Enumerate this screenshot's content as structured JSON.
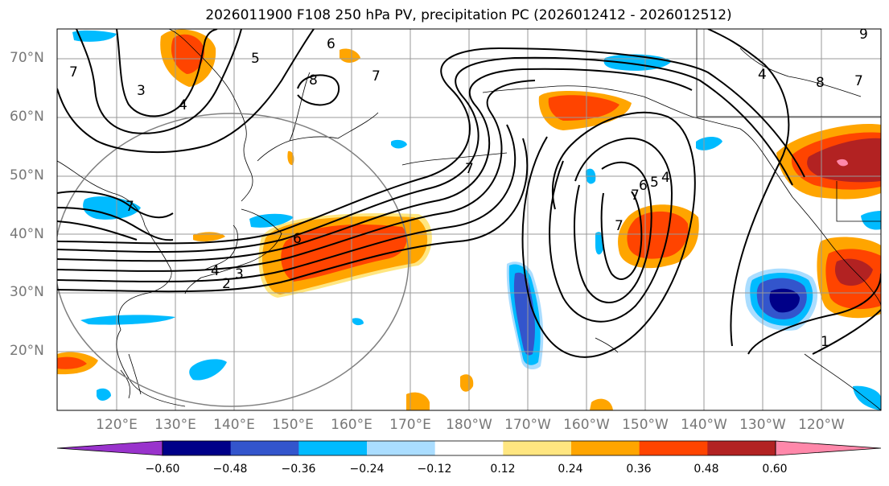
{
  "title": "2026011900 F108 250 hPa PV, precipitation PC (2026012412 - 2026012512)",
  "lat_labels": [
    "70°N",
    "60°N",
    "50°N",
    "40°N",
    "30°N",
    "20°N"
  ],
  "lon_labels": [
    "120°E",
    "130°E",
    "140°E",
    "150°E",
    "160°E",
    "170°E",
    "180°W",
    "170°W",
    "160°W",
    "150°W",
    "140°W",
    "130°W",
    "120°W"
  ],
  "colorbar": {
    "colors": [
      "#9933cc",
      "#000088",
      "#3355cc",
      "#00bbff",
      "#aaddff",
      "#ffffff",
      "#ffe680",
      "#ffa500",
      "#ff4400",
      "#b22222",
      "#ff88aa"
    ],
    "tick_labels": [
      "−0.60",
      "−0.48",
      "−0.36",
      "−0.24",
      "−0.12",
      "0.12",
      "0.24",
      "0.36",
      "0.48",
      "0.60"
    ]
  },
  "contour_labels": [
    {
      "id": "c-7a",
      "text": "7"
    },
    {
      "id": "c-3a",
      "text": "3"
    },
    {
      "id": "c-4a",
      "text": "4"
    },
    {
      "id": "c-5a",
      "text": "5"
    },
    {
      "id": "c-6a",
      "text": "6"
    },
    {
      "id": "c-8a",
      "text": "8"
    },
    {
      "id": "c-7b",
      "text": "7"
    },
    {
      "id": "c-7c",
      "text": "7"
    },
    {
      "id": "c-7d",
      "text": "7"
    },
    {
      "id": "c-6b",
      "text": "6"
    },
    {
      "id": "c-4b",
      "text": "4"
    },
    {
      "id": "c-3b",
      "text": "3"
    },
    {
      "id": "c-2a",
      "text": "2"
    },
    {
      "id": "c-7e",
      "text": "7"
    },
    {
      "id": "c-7f",
      "text": "7"
    },
    {
      "id": "c-6c",
      "text": "6"
    },
    {
      "id": "c-5b",
      "text": "5"
    },
    {
      "id": "c-4c",
      "text": "4"
    },
    {
      "id": "c-1a",
      "text": "1"
    },
    {
      "id": "c-4d",
      "text": "4"
    },
    {
      "id": "c-8b",
      "text": "8"
    },
    {
      "id": "c-7g",
      "text": "7"
    },
    {
      "id": "c-9a",
      "text": "9"
    }
  ]
}
